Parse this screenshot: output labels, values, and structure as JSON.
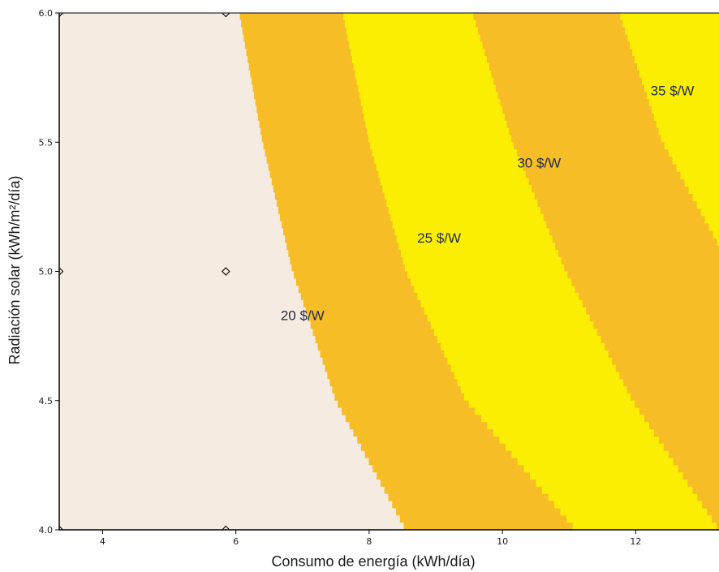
{
  "chart_data": {
    "type": "heatmap",
    "subtype": "filled-contour",
    "xlabel": "Consumo de energía  (kWh/día)",
    "ylabel": "Radiación solar (kWh/m²/día)",
    "xlim": [
      3.35,
      13.25
    ],
    "ylim": [
      4.0,
      6.0
    ],
    "x_ticks": [
      4,
      6,
      8,
      10,
      12
    ],
    "y_ticks": [
      4.0,
      4.5,
      5.0,
      5.5,
      6.0
    ],
    "x_tick_labels": [
      "4",
      "6",
      "8",
      "10",
      "12"
    ],
    "y_tick_labels": [
      "4.0",
      "4.5",
      "5.0",
      "5.5",
      "6.0"
    ],
    "grid": false,
    "legend": "none",
    "colors": {
      "band_below_20": "#f5ebe1",
      "band_20_25": "#f6bd26",
      "band_25_30": "#fbee02",
      "band_30_35": "#f6bd26",
      "band_above_35": "#fbee02",
      "axis": "#000000"
    },
    "contours": [
      {
        "label": "20 $/W",
        "level": 20,
        "points": [
          [
            6.05,
            6.0
          ],
          [
            6.4,
            5.5
          ],
          [
            6.85,
            5.0
          ],
          [
            7.5,
            4.5
          ],
          [
            8.55,
            4.0
          ]
        ]
      },
      {
        "label": "25 $/W",
        "level": 25,
        "points": [
          [
            7.6,
            6.0
          ],
          [
            8.0,
            5.5
          ],
          [
            8.55,
            5.0
          ],
          [
            9.45,
            4.5
          ],
          [
            11.1,
            4.0
          ]
        ]
      },
      {
        "label": "30 $/W",
        "level": 30,
        "points": [
          [
            9.55,
            6.0
          ],
          [
            10.15,
            5.5
          ],
          [
            10.95,
            5.0
          ],
          [
            11.95,
            4.5
          ],
          [
            13.25,
            4.0
          ]
        ]
      },
      {
        "label": "35 $/W",
        "level": 35,
        "points": [
          [
            11.75,
            6.0
          ],
          [
            12.4,
            5.5
          ],
          [
            13.25,
            5.1
          ]
        ]
      }
    ],
    "contour_labels": [
      {
        "text": "20 $/W",
        "x": 7.0,
        "y": 4.83
      },
      {
        "text": "25 $/W",
        "x": 9.05,
        "y": 5.13
      },
      {
        "text": "30 $/W",
        "x": 10.55,
        "y": 5.42
      },
      {
        "text": "35 $/W",
        "x": 12.55,
        "y": 5.7
      }
    ],
    "design_points": [
      {
        "x": 3.35,
        "y": 4.0
      },
      {
        "x": 3.35,
        "y": 5.0
      },
      {
        "x": 3.35,
        "y": 6.0
      },
      {
        "x": 5.85,
        "y": 4.0
      },
      {
        "x": 5.85,
        "y": 5.0
      },
      {
        "x": 5.85,
        "y": 6.0
      }
    ]
  }
}
